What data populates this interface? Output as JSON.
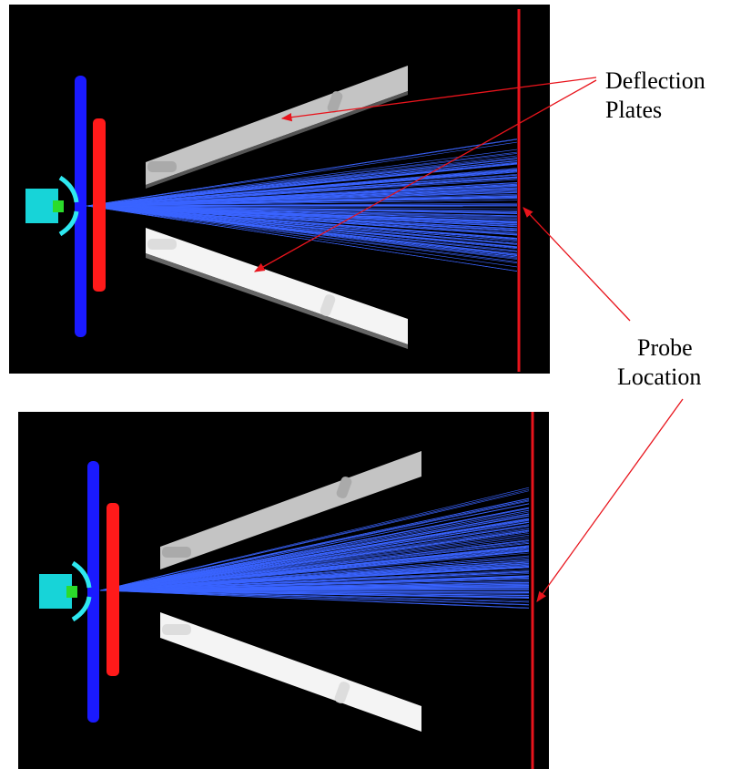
{
  "annotations": [
    {
      "label_lines": [
        "Deflection",
        "Plates"
      ]
    },
    {
      "label_lines": [
        "Probe",
        "Location"
      ]
    }
  ]
}
